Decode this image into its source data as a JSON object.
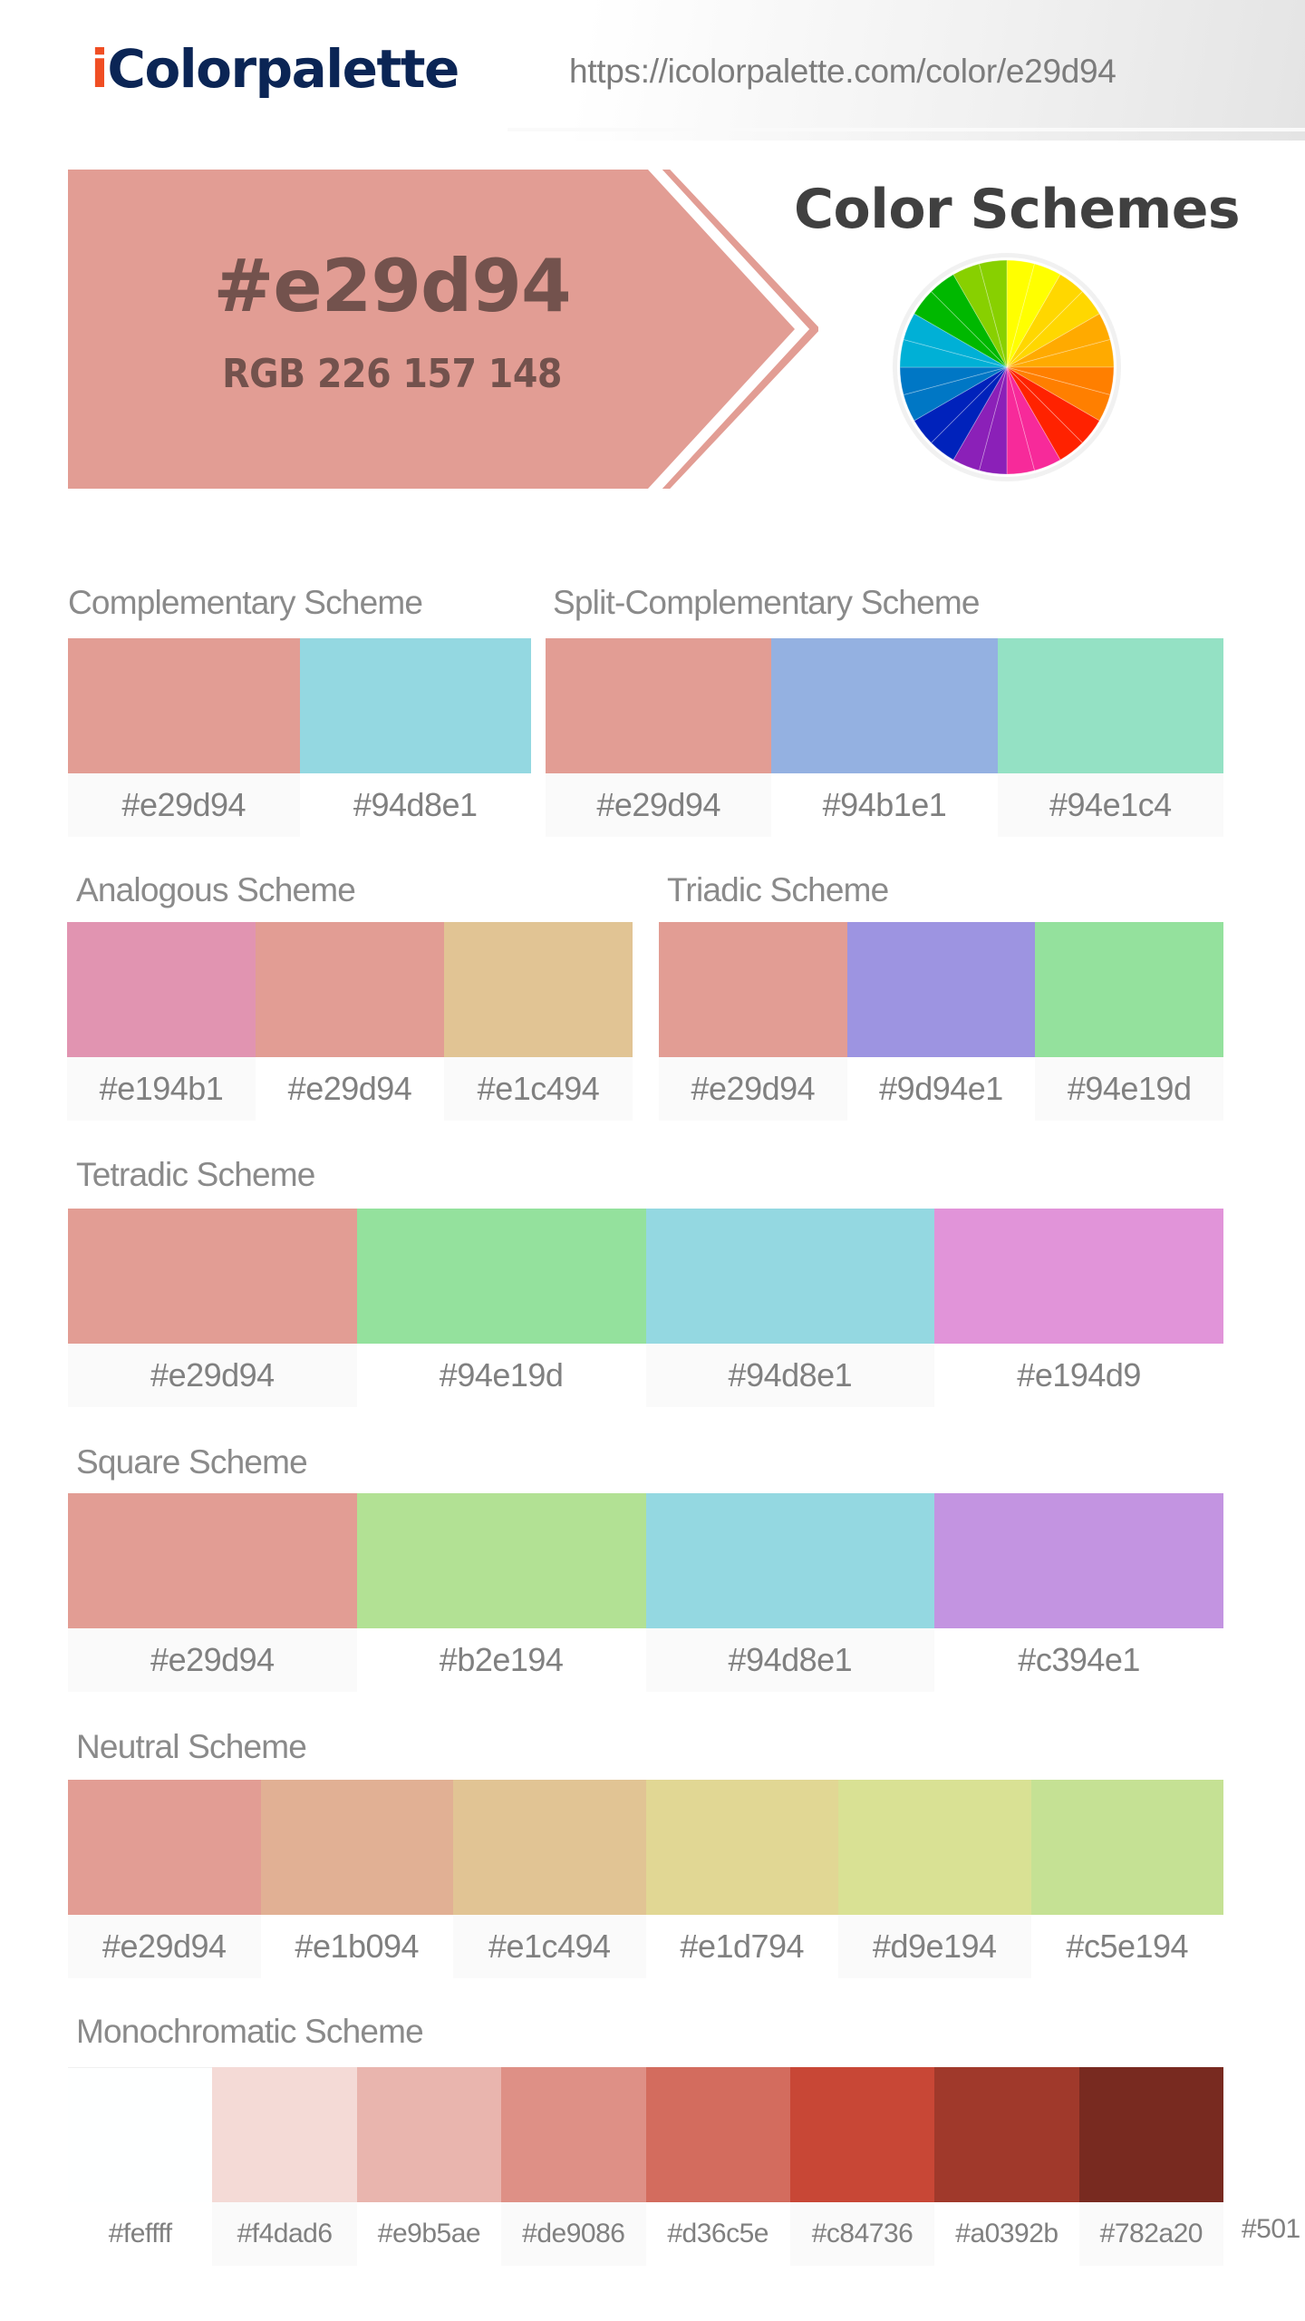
{
  "header": {
    "logo_prefix": "i",
    "logo_rest": "Colorpalette",
    "url": "https://icolorpalette.com/color/e29d94"
  },
  "hero": {
    "hex": "#e29d94",
    "rgb": "RGB 226 157 148",
    "color": "#e29d94",
    "text_color": "#73524d",
    "title": "Color Schemes",
    "wheel_icon": "color-wheel-icon"
  },
  "schemes": {
    "complementary": {
      "title": "Complementary Scheme",
      "colors": [
        "#e29d94",
        "#94d8e1"
      ]
    },
    "split_complementary": {
      "title": "Split-Complementary Scheme",
      "colors": [
        "#e29d94",
        "#94b1e1",
        "#94e1c4"
      ]
    },
    "analogous": {
      "title": "Analogous Scheme",
      "colors": [
        "#e194b1",
        "#e29d94",
        "#e1c494"
      ]
    },
    "triadic": {
      "title": "Triadic Scheme",
      "colors": [
        "#e29d94",
        "#9d94e1",
        "#94e19d"
      ]
    },
    "tetradic": {
      "title": "Tetradic Scheme",
      "colors": [
        "#e29d94",
        "#94e19d",
        "#94d8e1",
        "#e194d9"
      ]
    },
    "square": {
      "title": "Square Scheme",
      "colors": [
        "#e29d94",
        "#b2e194",
        "#94d8e1",
        "#c394e1"
      ]
    },
    "neutral": {
      "title": "Neutral Scheme",
      "colors": [
        "#e29d94",
        "#e1b094",
        "#e1c494",
        "#e1d794",
        "#d9e194",
        "#c5e194"
      ]
    },
    "monochromatic": {
      "title": "Monochromatic Scheme",
      "colors": [
        "#feffff",
        "#f4dad6",
        "#e9b5ae",
        "#de9086",
        "#d36c5e",
        "#c84736",
        "#a0392b",
        "#782a20"
      ],
      "overflow_label": "#501"
    }
  }
}
